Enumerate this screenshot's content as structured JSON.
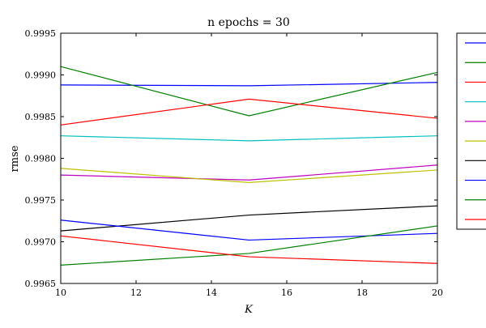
{
  "chart_data": {
    "type": "line",
    "title": "n epochs = 30",
    "xlabel": "K",
    "ylabel": "rmse",
    "x": [
      10,
      15,
      20
    ],
    "xlim": [
      10,
      20
    ],
    "ylim": [
      0.9965,
      0.9995
    ],
    "xticks": [
      "10",
      "12",
      "14",
      "16",
      "18",
      "20"
    ],
    "yticks": [
      "0.9965",
      "0.9970",
      "0.9975",
      "0.9980",
      "0.9985",
      "0.9990",
      "0.9995"
    ],
    "grid": false,
    "legend_position": "outside-right",
    "series": [
      {
        "color": "#0000ff",
        "values": [
          0.99888,
          0.99887,
          0.99891
        ]
      },
      {
        "color": "#008000",
        "values": [
          0.9991,
          0.99851,
          0.99903
        ]
      },
      {
        "color": "#ff0000",
        "values": [
          0.9984,
          0.99871,
          0.99848
        ]
      },
      {
        "color": "#00bfbf",
        "values": [
          0.99827,
          0.99821,
          0.99827
        ]
      },
      {
        "color": "#bf00bf",
        "values": [
          0.9978,
          0.99774,
          0.99792
        ]
      },
      {
        "color": "#bfbf00",
        "values": [
          0.99788,
          0.99771,
          0.99786
        ]
      },
      {
        "color": "#000000",
        "values": [
          0.99713,
          0.99732,
          0.99743
        ]
      },
      {
        "color": "#0000ff",
        "values": [
          0.99726,
          0.99702,
          0.9971
        ]
      },
      {
        "color": "#008000",
        "values": [
          0.99672,
          0.99686,
          0.99719
        ]
      },
      {
        "color": "#ff0000",
        "values": [
          0.99707,
          0.99682,
          0.99674
        ]
      }
    ]
  }
}
